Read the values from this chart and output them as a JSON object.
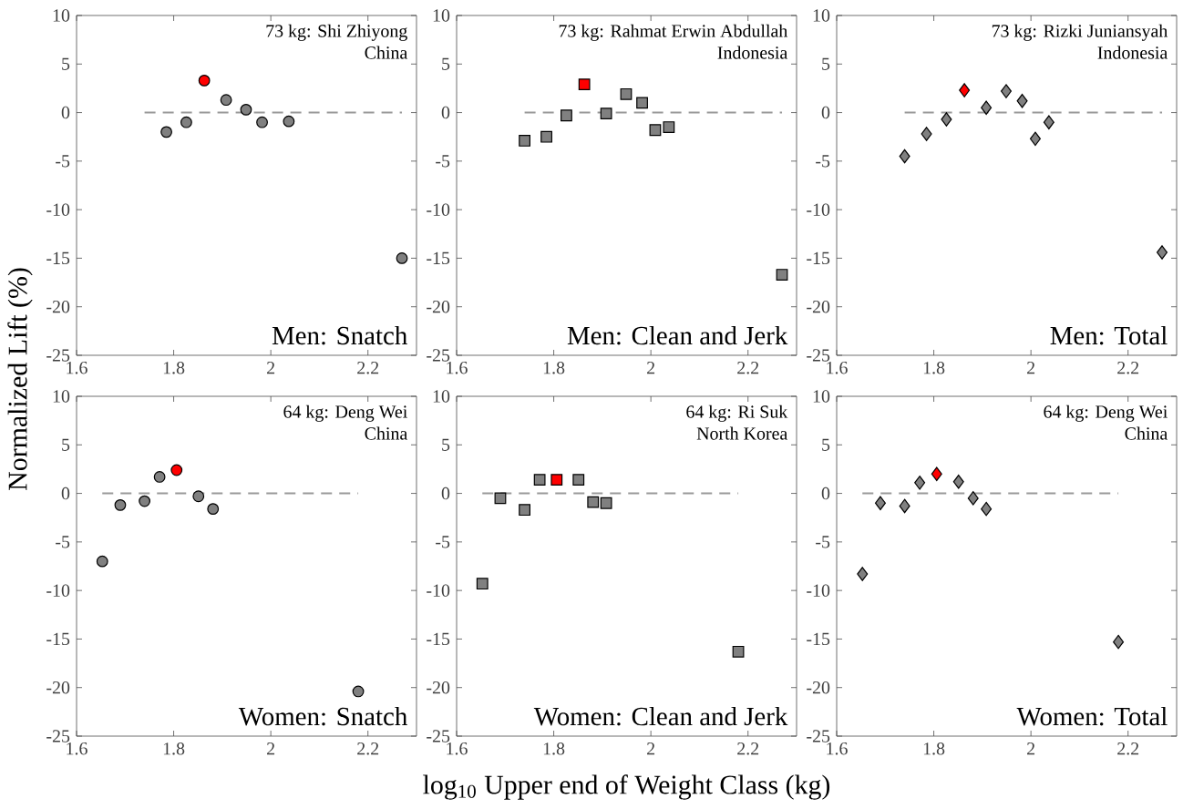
{
  "chart_data": [
    {
      "type": "scatter",
      "title": "Men: Snatch",
      "ylabel": "Normalized Lift (%)",
      "annotations": [
        "73 kg: Shi Zhiyong",
        "China"
      ],
      "marker": "circle",
      "xlim": [
        1.6,
        2.3
      ],
      "ylim": [
        -25,
        10
      ],
      "xticks": [
        1.6,
        1.8,
        2,
        2.2
      ],
      "yticks": [
        -25,
        -20,
        -15,
        -10,
        -5,
        0,
        5,
        10
      ],
      "series": [
        {
          "type": "line",
          "color": "#999999",
          "line_style": "dashed",
          "marker": "none",
          "x": [
            1.74,
            2.27
          ],
          "values": [
            0,
            0
          ]
        },
        {
          "color": "#808080",
          "x": [
            1.785,
            1.826,
            1.908,
            1.949,
            1.982,
            2.037,
            2.27
          ],
          "values": [
            -2.0,
            -1.0,
            1.3,
            0.3,
            -1.0,
            -0.9,
            -15.0
          ]
        },
        {
          "color": "#ff0000",
          "x": [
            1.863
          ],
          "values": [
            3.3
          ]
        }
      ]
    },
    {
      "type": "scatter",
      "title": "Men: Clean and Jerk",
      "annotations": [
        "73 kg: Rahmat Erwin Abdullah",
        "Indonesia"
      ],
      "marker": "square",
      "xlim": [
        1.6,
        2.3
      ],
      "ylim": [
        -25,
        10
      ],
      "xticks": [
        1.6,
        1.8,
        2,
        2.2
      ],
      "yticks": [
        -25,
        -20,
        -15,
        -10,
        -5,
        0,
        5,
        10
      ],
      "series": [
        {
          "type": "line",
          "color": "#999999",
          "line_style": "dashed",
          "marker": "none",
          "x": [
            1.74,
            2.27
          ],
          "values": [
            0,
            0
          ]
        },
        {
          "color": "#808080",
          "x": [
            1.74,
            1.785,
            1.826,
            1.908,
            1.949,
            1.982,
            2.009,
            2.037,
            2.27
          ],
          "values": [
            -2.9,
            -2.5,
            -0.3,
            -0.1,
            1.9,
            1.0,
            -1.8,
            -1.5,
            -16.7
          ]
        },
        {
          "color": "#ff0000",
          "x": [
            1.863
          ],
          "values": [
            2.9
          ]
        }
      ]
    },
    {
      "type": "scatter",
      "title": "Men: Total",
      "annotations": [
        "73 kg: Rizki Juniansyah",
        "Indonesia"
      ],
      "marker": "diamond",
      "xlim": [
        1.6,
        2.3
      ],
      "ylim": [
        -25,
        10
      ],
      "xticks": [
        1.6,
        1.8,
        2,
        2.2
      ],
      "yticks": [
        -25,
        -20,
        -15,
        -10,
        -5,
        0,
        5,
        10
      ],
      "series": [
        {
          "type": "line",
          "color": "#999999",
          "line_style": "dashed",
          "marker": "none",
          "x": [
            1.74,
            2.27
          ],
          "values": [
            0,
            0
          ]
        },
        {
          "color": "#808080",
          "x": [
            1.74,
            1.785,
            1.826,
            1.908,
            1.949,
            1.982,
            2.009,
            2.037,
            2.27
          ],
          "values": [
            -4.5,
            -2.2,
            -0.7,
            0.5,
            2.2,
            1.2,
            -2.7,
            -1.0,
            -14.4
          ]
        },
        {
          "color": "#ff0000",
          "x": [
            1.863
          ],
          "values": [
            2.3
          ]
        }
      ]
    },
    {
      "type": "scatter",
      "title": "Women: Snatch",
      "annotations": [
        "64 kg: Deng Wei",
        "China"
      ],
      "marker": "circle",
      "xlim": [
        1.6,
        2.3
      ],
      "ylim": [
        -25,
        10
      ],
      "xticks": [
        1.6,
        1.8,
        2,
        2.2
      ],
      "yticks": [
        -25,
        -20,
        -15,
        -10,
        -5,
        0,
        5,
        10
      ],
      "series": [
        {
          "type": "line",
          "color": "#999999",
          "line_style": "dashed",
          "marker": "none",
          "x": [
            1.653,
            2.18
          ],
          "values": [
            0,
            0
          ]
        },
        {
          "color": "#808080",
          "x": [
            1.653,
            1.69,
            1.74,
            1.771,
            1.851,
            1.881,
            2.18
          ],
          "values": [
            -7.0,
            -1.2,
            -0.8,
            1.7,
            -0.3,
            -1.6,
            -20.4
          ]
        },
        {
          "color": "#ff0000",
          "x": [
            1.806
          ],
          "values": [
            2.4
          ]
        }
      ]
    },
    {
      "type": "scatter",
      "title": "Women: Clean and Jerk",
      "xlabel": "log$_{10}$ Upper end of Weight Class (kg)",
      "annotations": [
        "64 kg: Ri Suk",
        "North Korea"
      ],
      "marker": "square",
      "xlim": [
        1.6,
        2.3
      ],
      "ylim": [
        -25,
        10
      ],
      "xticks": [
        1.6,
        1.8,
        2,
        2.2
      ],
      "yticks": [
        -25,
        -20,
        -15,
        -10,
        -5,
        0,
        5,
        10
      ],
      "series": [
        {
          "type": "line",
          "color": "#999999",
          "line_style": "dashed",
          "marker": "none",
          "x": [
            1.653,
            2.18
          ],
          "values": [
            0,
            0
          ]
        },
        {
          "color": "#808080",
          "x": [
            1.653,
            1.69,
            1.74,
            1.771,
            1.851,
            1.881,
            1.908,
            2.18
          ],
          "values": [
            -9.3,
            -0.5,
            -1.7,
            1.4,
            1.4,
            -0.9,
            -1.0,
            -16.3
          ]
        },
        {
          "color": "#ff0000",
          "x": [
            1.806
          ],
          "values": [
            1.4
          ]
        }
      ]
    },
    {
      "type": "scatter",
      "title": "Women: Total",
      "annotations": [
        "64 kg: Deng Wei",
        "China"
      ],
      "marker": "diamond",
      "xlim": [
        1.6,
        2.3
      ],
      "ylim": [
        -25,
        10
      ],
      "xticks": [
        1.6,
        1.8,
        2,
        2.2
      ],
      "yticks": [
        -25,
        -20,
        -15,
        -10,
        -5,
        0,
        5,
        10
      ],
      "series": [
        {
          "type": "line",
          "color": "#999999",
          "line_style": "dashed",
          "marker": "none",
          "x": [
            1.653,
            2.18
          ],
          "values": [
            0,
            0
          ]
        },
        {
          "color": "#808080",
          "x": [
            1.653,
            1.69,
            1.74,
            1.771,
            1.851,
            1.881,
            1.908,
            2.18
          ],
          "values": [
            -8.3,
            -1.0,
            -1.3,
            1.1,
            1.2,
            -0.5,
            -1.6,
            -15.3
          ]
        },
        {
          "color": "#ff0000",
          "x": [
            1.806
          ],
          "values": [
            2.0
          ]
        }
      ]
    }
  ]
}
